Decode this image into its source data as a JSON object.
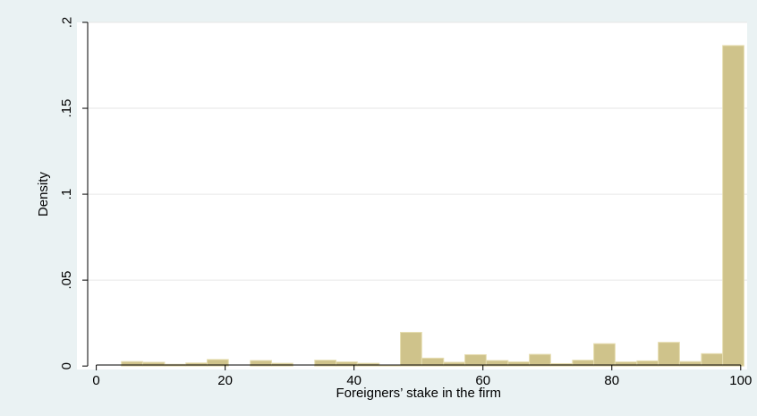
{
  "colors": {
    "outer_background": "#EAF2F3",
    "plot_background": "#FFFFFF",
    "bar_fill": "#CFC38B",
    "bar_stroke": "#E6DDB0",
    "grid": "#E6E6E6",
    "axis": "#000000"
  },
  "chart_data": {
    "type": "bar",
    "title": "",
    "xlabel": "Foreigners’ stake in the firm",
    "ylabel": "Density",
    "xlim": [
      -3,
      101
    ],
    "ylim": [
      -0.002,
      0.2
    ],
    "grid": true,
    "x_ticks": [
      0,
      20,
      40,
      60,
      80,
      100
    ],
    "x_tick_labels": [
      "0",
      "20",
      "40",
      "60",
      "80",
      "100"
    ],
    "y_ticks": [
      0,
      0.05,
      0.1,
      0.15,
      0.2
    ],
    "y_tick_labels": [
      "0",
      ".05",
      ".1",
      ".15",
      ".2"
    ],
    "bins": [
      {
        "x0": 3.9,
        "x1": 7.2,
        "density": 0.0026
      },
      {
        "x0": 7.2,
        "x1": 10.6,
        "density": 0.0022
      },
      {
        "x0": 10.6,
        "x1": 13.9,
        "density": 0.001
      },
      {
        "x0": 13.9,
        "x1": 17.2,
        "density": 0.0018
      },
      {
        "x0": 17.2,
        "x1": 20.5,
        "density": 0.0038
      },
      {
        "x0": 23.9,
        "x1": 27.2,
        "density": 0.0032
      },
      {
        "x0": 27.2,
        "x1": 30.5,
        "density": 0.0016
      },
      {
        "x0": 33.9,
        "x1": 37.2,
        "density": 0.0034
      },
      {
        "x0": 37.2,
        "x1": 40.5,
        "density": 0.0024
      },
      {
        "x0": 40.5,
        "x1": 43.9,
        "density": 0.0016
      },
      {
        "x0": 43.9,
        "x1": 47.2,
        "density": 0.0004
      },
      {
        "x0": 47.2,
        "x1": 50.5,
        "density": 0.0196
      },
      {
        "x0": 50.5,
        "x1": 53.9,
        "density": 0.0046
      },
      {
        "x0": 53.9,
        "x1": 57.2,
        "density": 0.0022
      },
      {
        "x0": 57.2,
        "x1": 60.5,
        "density": 0.0066
      },
      {
        "x0": 60.5,
        "x1": 63.9,
        "density": 0.0032
      },
      {
        "x0": 63.9,
        "x1": 67.2,
        "density": 0.0024
      },
      {
        "x0": 67.2,
        "x1": 70.5,
        "density": 0.0068
      },
      {
        "x0": 70.5,
        "x1": 73.9,
        "density": 0.0014
      },
      {
        "x0": 73.9,
        "x1": 77.2,
        "density": 0.0034
      },
      {
        "x0": 77.2,
        "x1": 80.5,
        "density": 0.013
      },
      {
        "x0": 80.5,
        "x1": 83.9,
        "density": 0.0024
      },
      {
        "x0": 83.9,
        "x1": 87.2,
        "density": 0.003
      },
      {
        "x0": 87.2,
        "x1": 90.5,
        "density": 0.0138
      },
      {
        "x0": 90.5,
        "x1": 93.9,
        "density": 0.0026
      },
      {
        "x0": 93.9,
        "x1": 97.2,
        "density": 0.0072
      },
      {
        "x0": 97.2,
        "x1": 100.5,
        "density": 0.1865
      }
    ]
  }
}
